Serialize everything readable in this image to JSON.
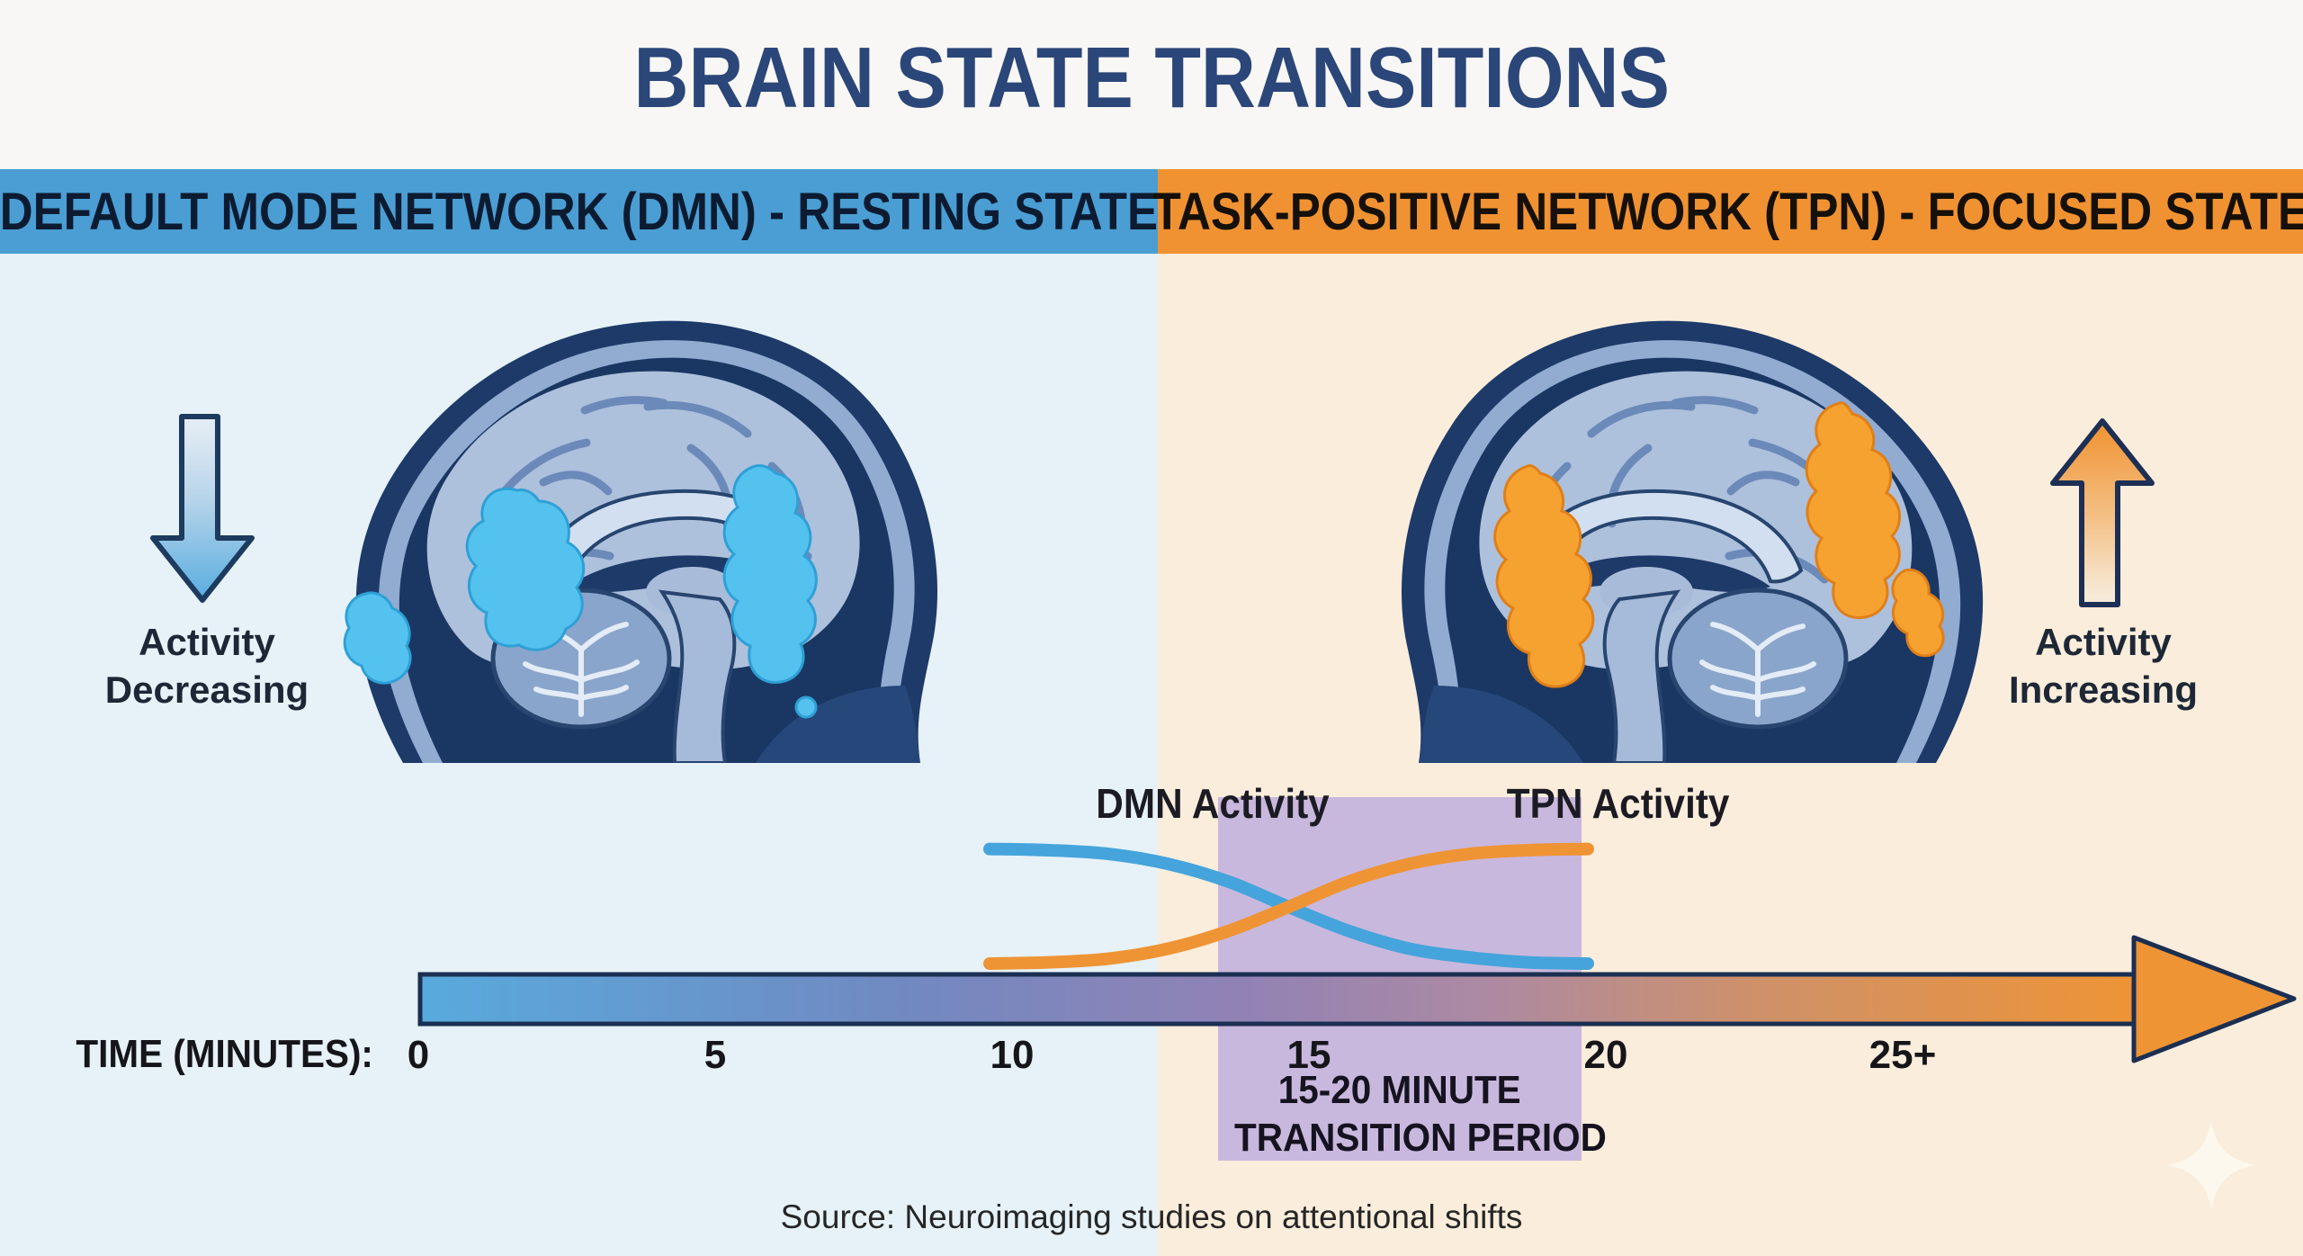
{
  "title": "BRAIN STATE TRANSITIONS",
  "panels": {
    "left": {
      "header": "DEFAULT MODE NETWORK (DMN) - RESTING STATE",
      "arrow_direction": "down",
      "arrow_label": [
        "Activity",
        "Decreasing"
      ],
      "brain_highlight": "blue"
    },
    "right": {
      "header": "TASK-POSITIVE NETWORK (TPN) - FOCUSED STATE",
      "arrow_direction": "up",
      "arrow_label": [
        "Activity",
        "Increasing"
      ],
      "brain_highlight": "orange"
    }
  },
  "chart_data": {
    "type": "line",
    "title": "",
    "xlabel": "TIME (MINUTES):",
    "ylabel": "",
    "x": [
      10,
      11,
      12,
      13,
      14,
      15,
      16,
      17,
      18,
      19,
      20
    ],
    "x_unit": "minutes",
    "series": [
      {
        "name": "DMN Activity",
        "color": "#45a4db",
        "values": [
          96,
          95,
          92,
          84,
          70,
          50,
          31,
          17,
          10,
          6,
          5
        ]
      },
      {
        "name": "TPN Activity",
        "color": "#ef9434",
        "values": [
          5,
          6,
          9,
          17,
          31,
          50,
          70,
          84,
          92,
          95,
          96
        ]
      }
    ],
    "highlight_region_minutes": [
      15,
      20
    ],
    "annotation": "15-20 MINUTE TRANSITION PERIOD",
    "legend_position": "above-curves",
    "grid": false,
    "axis_ticks": [
      "0",
      "5",
      "10",
      "15",
      "20",
      "25+"
    ]
  },
  "timeline": {
    "label": "TIME (MINUTES):",
    "ticks": [
      "0",
      "5",
      "10",
      "15",
      "20",
      "25+"
    ]
  },
  "transition_box": {
    "line1": "15-20 MINUTE",
    "line2": "TRANSITION PERIOD"
  },
  "source": "Source: Neuroimaging studies on attentional shifts",
  "colors": {
    "left_band": "#4a9ed3",
    "right_band": "#f09232",
    "left_background": "#e6f2f8",
    "right_background": "#faeddb",
    "title_text": "#2b4678",
    "dmn_curve": "#45a4db",
    "tpn_curve": "#ef9434",
    "transition_highlight": "#c9b8dd",
    "timeline_outline": "#1b2f52",
    "down_arrow_blue": "#58ade0",
    "up_arrow_orange": "#f0922f",
    "brain_dark_navy": "#1d3a69",
    "brain_cortex": "#adc0dc",
    "dmn_blob_cyan": "#54c2ee",
    "tpn_blob_orange": "#f6a231"
  }
}
